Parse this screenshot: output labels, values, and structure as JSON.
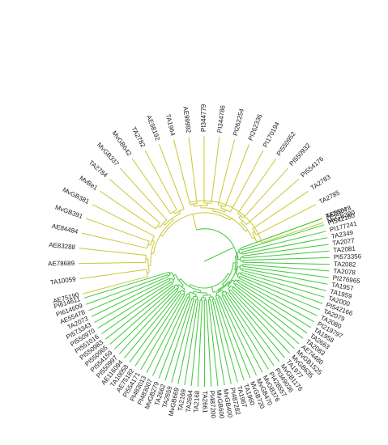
{
  "tree": {
    "colors": {
      "yellow": "#c8c832",
      "green": "#3ec83a",
      "root": "#39c635"
    },
    "yellow_labels": [
      "AE75190",
      "TA10059",
      "AE78689",
      "AE83288",
      "AE84484",
      "MvGB391",
      "MvGB381",
      "MvBe1",
      "TA2784",
      "MvGB337",
      "MvGB642",
      "TA2782",
      "AE98192",
      "TA1964",
      "AE99992",
      "PI344779",
      "PI344786",
      "PI262254",
      "PI262336",
      "PI170194",
      "PI550952",
      "PI550932",
      "PI554176",
      "TA2783",
      "TA2785",
      "TA2074"
    ],
    "yellow_bridge_label": "MvGB380",
    "green_labels": [
      "AE55078",
      "PI542160",
      "PI177241",
      "TA2349",
      "TA2077",
      "TA2081",
      "PI573356",
      "TA2082",
      "TA2078",
      "PI276965",
      "TA1957",
      "TA1959",
      "TA2000",
      "PI542166",
      "TA2079",
      "TA2080",
      "PI219797",
      "TA1958",
      "TA2663",
      "TA2083",
      "AE74480",
      "MvGB1525",
      "MvGB635",
      "TA1977",
      "MvGB1176",
      "PI349036",
      "PI428557",
      "MvGB376",
      "MvGB470",
      "MvGB720",
      "TA1960",
      "TA1967",
      "PI487282",
      "MvGB400",
      "MvGB600",
      "PI487200",
      "TA2661",
      "TA2168",
      "TA2664",
      "TA2169",
      "MvGB669",
      "TA2659",
      "TA2662",
      "MvGB279",
      "PI483007",
      "PI483013",
      "PI554171",
      "AE75182",
      "TA10058",
      "AE116094",
      "PI550997",
      "PI554159",
      "PI550965",
      "PI550983",
      "PI551016",
      "PI550970",
      "PI573343",
      "TA2073",
      "AE55478",
      "PI614609",
      "PI614611"
    ]
  }
}
